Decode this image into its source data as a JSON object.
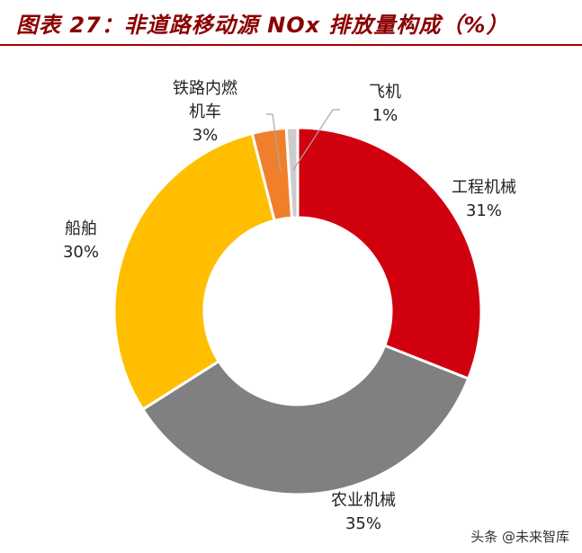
{
  "header": {
    "title": "图表 27：非道路移动源 NOx 排放量构成（%）"
  },
  "watermark": "头条 @未来智库",
  "chart_data": {
    "type": "pie",
    "variant": "donut",
    "title": "图表 27：非道路移动源 NOx 排放量构成（%）",
    "slices": [
      {
        "name_lines": [
          "工程机械"
        ],
        "value_label": "31%",
        "value": 31,
        "color": "#d0000e"
      },
      {
        "name_lines": [
          "农业机械"
        ],
        "value_label": "35%",
        "value": 35,
        "color": "#808080"
      },
      {
        "name_lines": [
          "船舶"
        ],
        "value_label": "30%",
        "value": 30,
        "color": "#ffbf00"
      },
      {
        "name_lines": [
          "铁路内燃",
          "机车"
        ],
        "value_label": "3%",
        "value": 3,
        "color": "#f07f2c"
      },
      {
        "name_lines": [
          "飞机"
        ],
        "value_label": "1%",
        "value": 1,
        "color": "#cccccc"
      }
    ],
    "start_angle": "12 o'clock",
    "direction": "clockwise",
    "legend": "none"
  }
}
